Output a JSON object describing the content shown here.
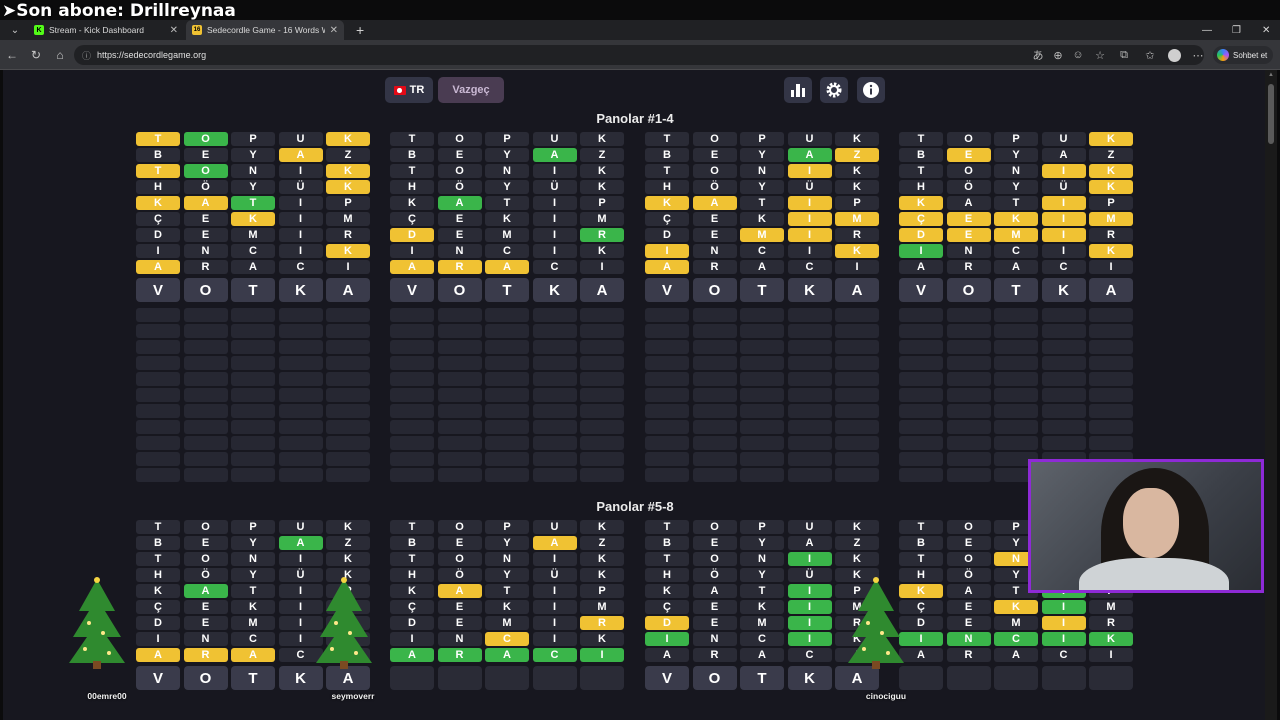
{
  "overlay": {
    "text": "➤Son abone: Drillreynaa"
  },
  "browser": {
    "tabs": [
      {
        "label": "Stream - Kick Dashboard",
        "icon": "kick-icon",
        "favicon_text": "K",
        "favicon_color": "#53fc18"
      },
      {
        "label": "Sedecordle Game - 16 Words Wo",
        "icon": "sedecordle-icon",
        "favicon_text": "16",
        "favicon_color": "#f0c233"
      }
    ],
    "new_tab": "+",
    "url": "https://sedecordlegame.org",
    "copilot_label": "Sohbet et"
  },
  "game": {
    "language_label": "TR",
    "giveup_label": "Vazgeç",
    "section1_title": "Panolar #1-4",
    "section2_title": "Panolar #5-8",
    "guesses": [
      "TOPUK",
      "BEYAZ",
      "TONIK",
      "HÖYÜK",
      "KATIP",
      "ÇEKIM",
      "DEMIR",
      "INCIK",
      "ARACI"
    ],
    "current_word": "VOTKA",
    "colors": {
      "green": "#3ab54a",
      "yellow": "#f0c233",
      "empty": "#2f3040"
    },
    "boards_top": [
      {
        "rows": [
          "yg..y",
          "...y.",
          "yg..y",
          "....y",
          "yyg..",
          "..y..",
          ".....",
          "....y",
          "y...."
        ],
        "solved": false
      },
      {
        "rows": [
          ".....",
          "...g.",
          ".....",
          ".....",
          ".g...",
          ".....",
          "y...g",
          ".....",
          "yyy.."
        ],
        "solved": false
      },
      {
        "rows": [
          ".....",
          "...gy",
          "...y.",
          ".....",
          "yy.y.",
          "...yy",
          "..yy.",
          "y...y",
          "y...."
        ],
        "solved": false
      },
      {
        "rows": [
          "....y",
          ".y...",
          "...yy",
          "....y",
          "y..y.",
          "yyyyy",
          "yyyy.",
          "g...y",
          "....."
        ],
        "solved": false
      }
    ],
    "boards_bottom": [
      {
        "rows": [
          ".....",
          "...g.",
          ".....",
          ".....",
          ".g...",
          ".....",
          ".....",
          ".....",
          "yyy.."
        ],
        "show_current": true,
        "player": "00emre00"
      },
      {
        "rows": [
          ".....",
          "...y.",
          ".....",
          ".....",
          ".y...",
          ".....",
          "....y",
          "..y..",
          "ggggg"
        ],
        "show_current": false,
        "player": "seymoverr"
      },
      {
        "rows": [
          ".....",
          ".....",
          "...g.",
          ".....",
          "...g.",
          "...g.",
          "y..g.",
          "g..g.",
          "....."
        ],
        "show_current": true,
        "player": "cinociguu"
      },
      {
        "rows": [
          ".....",
          ".....",
          "..y..",
          ".....",
          "y..g.",
          "..yg.",
          "...y.",
          "ggggg",
          "....."
        ],
        "show_current": false,
        "player": ""
      }
    ]
  }
}
